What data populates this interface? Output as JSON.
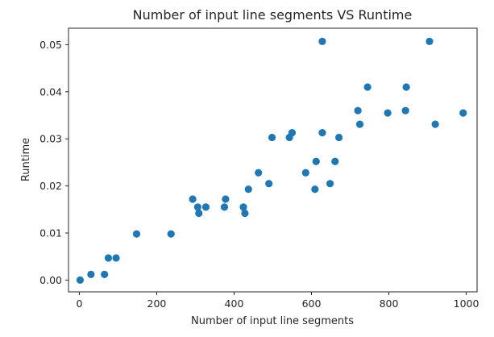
{
  "chart_data": {
    "type": "scatter",
    "title": "Number of input line segments VS Runtime",
    "xlabel": "Number of input line segments",
    "ylabel": "Runtime",
    "xlim": [
      -28,
      1028
    ],
    "ylim": [
      -0.0025,
      0.0535
    ],
    "xticks": [
      0,
      200,
      400,
      600,
      800,
      1000
    ],
    "xtick_labels": [
      "0",
      "200",
      "400",
      "600",
      "800",
      "1000"
    ],
    "yticks": [
      0.0,
      0.01,
      0.02,
      0.03,
      0.04,
      0.05
    ],
    "ytick_labels": [
      "0.00",
      "0.01",
      "0.02",
      "0.03",
      "0.04",
      "0.05"
    ],
    "grid": false,
    "marker_color": "#1f77b4",
    "points": [
      {
        "x": 2,
        "y": 0.0
      },
      {
        "x": 30,
        "y": 0.0012
      },
      {
        "x": 65,
        "y": 0.0012
      },
      {
        "x": 75,
        "y": 0.0047
      },
      {
        "x": 95,
        "y": 0.0047
      },
      {
        "x": 148,
        "y": 0.0098
      },
      {
        "x": 237,
        "y": 0.0098
      },
      {
        "x": 293,
        "y": 0.0172
      },
      {
        "x": 306,
        "y": 0.0155
      },
      {
        "x": 309,
        "y": 0.0142
      },
      {
        "x": 327,
        "y": 0.0155
      },
      {
        "x": 375,
        "y": 0.0155
      },
      {
        "x": 378,
        "y": 0.0172
      },
      {
        "x": 424,
        "y": 0.0155
      },
      {
        "x": 428,
        "y": 0.0142
      },
      {
        "x": 437,
        "y": 0.0193
      },
      {
        "x": 463,
        "y": 0.0228
      },
      {
        "x": 490,
        "y": 0.0205
      },
      {
        "x": 498,
        "y": 0.0303
      },
      {
        "x": 543,
        "y": 0.0303
      },
      {
        "x": 550,
        "y": 0.0313
      },
      {
        "x": 585,
        "y": 0.0228
      },
      {
        "x": 609,
        "y": 0.0193
      },
      {
        "x": 612,
        "y": 0.0252
      },
      {
        "x": 628,
        "y": 0.0507
      },
      {
        "x": 628,
        "y": 0.0313
      },
      {
        "x": 648,
        "y": 0.0205
      },
      {
        "x": 661,
        "y": 0.0252
      },
      {
        "x": 671,
        "y": 0.0303
      },
      {
        "x": 720,
        "y": 0.036
      },
      {
        "x": 725,
        "y": 0.0331
      },
      {
        "x": 745,
        "y": 0.041
      },
      {
        "x": 797,
        "y": 0.0355
      },
      {
        "x": 843,
        "y": 0.036
      },
      {
        "x": 845,
        "y": 0.041
      },
      {
        "x": 905,
        "y": 0.0507
      },
      {
        "x": 920,
        "y": 0.0331
      },
      {
        "x": 992,
        "y": 0.0355
      }
    ]
  }
}
